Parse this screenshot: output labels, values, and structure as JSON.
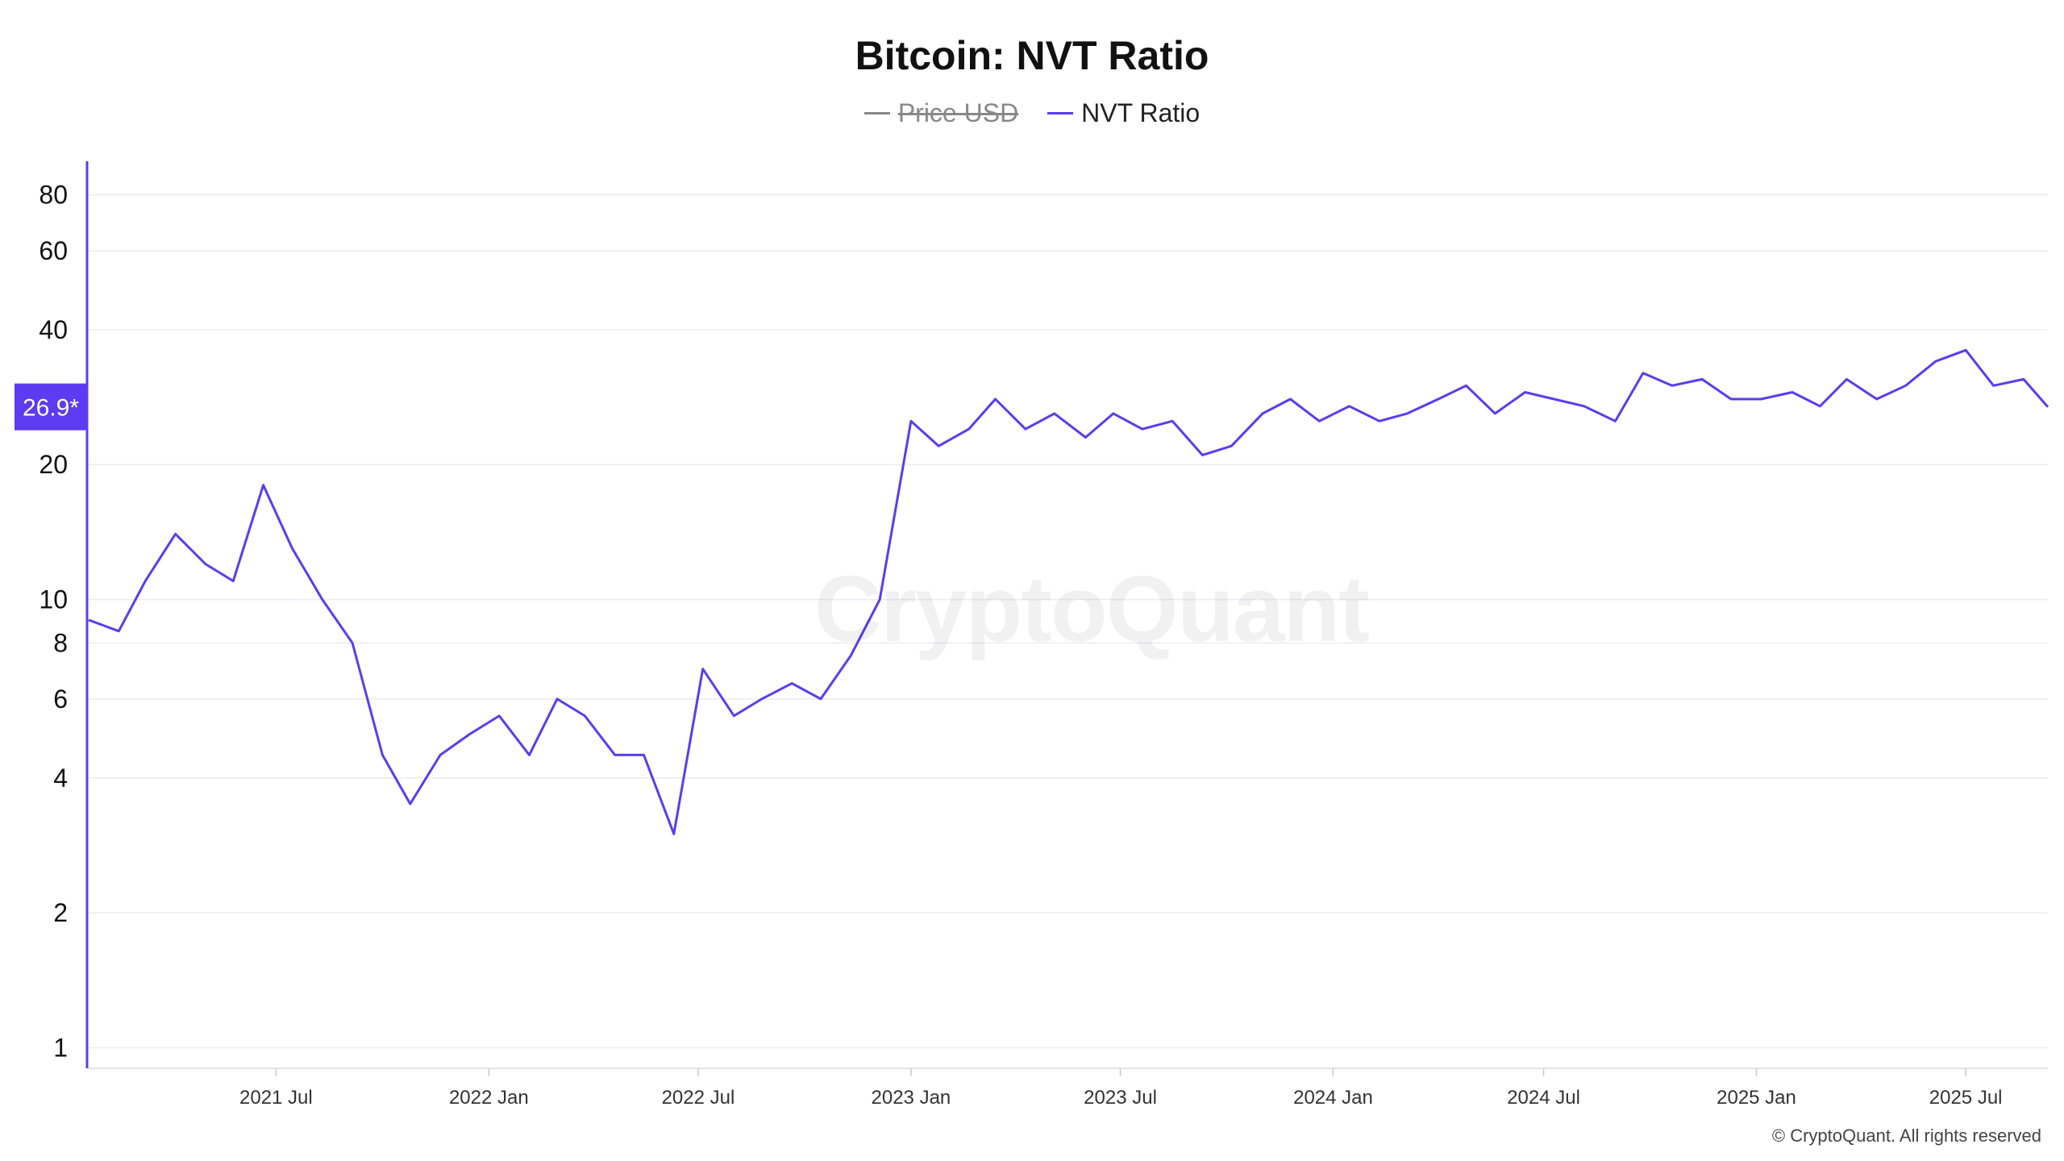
{
  "chart_data": {
    "type": "line",
    "title": "Bitcoin: NVT Ratio",
    "xlabel": "",
    "ylabel": "",
    "y_scale": "log",
    "ylim": [
      0.9,
      95
    ],
    "xlim": [
      "2021-01-20",
      "2025-09-10"
    ],
    "grid": true,
    "legend_position": "top-center",
    "y_ticks": [
      "1",
      "2",
      "4",
      "6",
      "8",
      "10",
      "20",
      "40",
      "60",
      "80"
    ],
    "y_tick_values": [
      1,
      2,
      4,
      6,
      8,
      10,
      20,
      40,
      60,
      80
    ],
    "x_ticks": [
      "2021 Jul",
      "2022 Jan",
      "2022 Jul",
      "2023 Jan",
      "2023 Jul",
      "2024 Jan",
      "2024 Jul",
      "2025 Jan",
      "2025 Jul"
    ],
    "x_tick_dates": [
      "2021-07-01",
      "2022-01-01",
      "2022-07-01",
      "2023-01-01",
      "2023-07-01",
      "2024-01-01",
      "2024-07-01",
      "2025-01-01",
      "2025-07-01"
    ],
    "current_value_label": "26.9*",
    "current_value": 26.9,
    "series": [
      {
        "name": "Price USD",
        "color": "#888888",
        "hidden": true,
        "values": []
      },
      {
        "name": "NVT Ratio",
        "color": "#5b3cf0",
        "x": [
          "2021-01-20",
          "2021-02-15",
          "2021-03-10",
          "2021-04-05",
          "2021-05-01",
          "2021-05-25",
          "2021-06-20",
          "2021-07-15",
          "2021-08-10",
          "2021-09-05",
          "2021-10-01",
          "2021-10-25",
          "2021-11-20",
          "2021-12-15",
          "2022-01-10",
          "2022-02-05",
          "2022-03-01",
          "2022-03-25",
          "2022-04-20",
          "2022-05-15",
          "2022-06-10",
          "2022-07-05",
          "2022-08-01",
          "2022-08-25",
          "2022-09-20",
          "2022-10-15",
          "2022-11-10",
          "2022-12-05",
          "2023-01-01",
          "2023-01-25",
          "2023-02-20",
          "2023-03-15",
          "2023-04-10",
          "2023-05-05",
          "2023-06-01",
          "2023-06-25",
          "2023-07-20",
          "2023-08-15",
          "2023-09-10",
          "2023-10-05",
          "2023-11-01",
          "2023-11-25",
          "2023-12-20",
          "2024-01-15",
          "2024-02-10",
          "2024-03-05",
          "2024-04-01",
          "2024-04-25",
          "2024-05-20",
          "2024-06-15",
          "2024-07-10",
          "2024-08-05",
          "2024-09-01",
          "2024-09-25",
          "2024-10-20",
          "2024-11-15",
          "2024-12-10",
          "2025-01-05",
          "2025-02-01",
          "2025-02-25",
          "2025-03-20",
          "2025-04-15",
          "2025-05-10",
          "2025-06-05",
          "2025-07-01",
          "2025-07-25",
          "2025-08-20",
          "2025-09-10"
        ],
        "values": [
          9,
          8.5,
          11,
          14,
          12,
          11,
          18,
          13,
          10,
          8,
          4.5,
          3.5,
          4.5,
          5,
          5.5,
          4.5,
          6,
          5.5,
          4.5,
          4.5,
          3,
          7,
          5.5,
          6,
          6.5,
          6,
          7.5,
          10,
          25,
          22,
          24,
          28,
          24,
          26,
          23,
          26,
          24,
          25,
          21,
          22,
          26,
          28,
          25,
          27,
          25,
          26,
          28,
          30,
          26,
          29,
          28,
          27,
          25,
          32,
          30,
          31,
          28,
          28,
          29,
          27,
          31,
          28,
          30,
          34,
          36,
          30,
          31,
          26.9
        ]
      }
    ]
  },
  "legend": {
    "items": [
      "Price USD",
      "NVT Ratio"
    ]
  },
  "watermark": "CryptoQuant",
  "credit": "© CryptoQuant. All rights reserved"
}
